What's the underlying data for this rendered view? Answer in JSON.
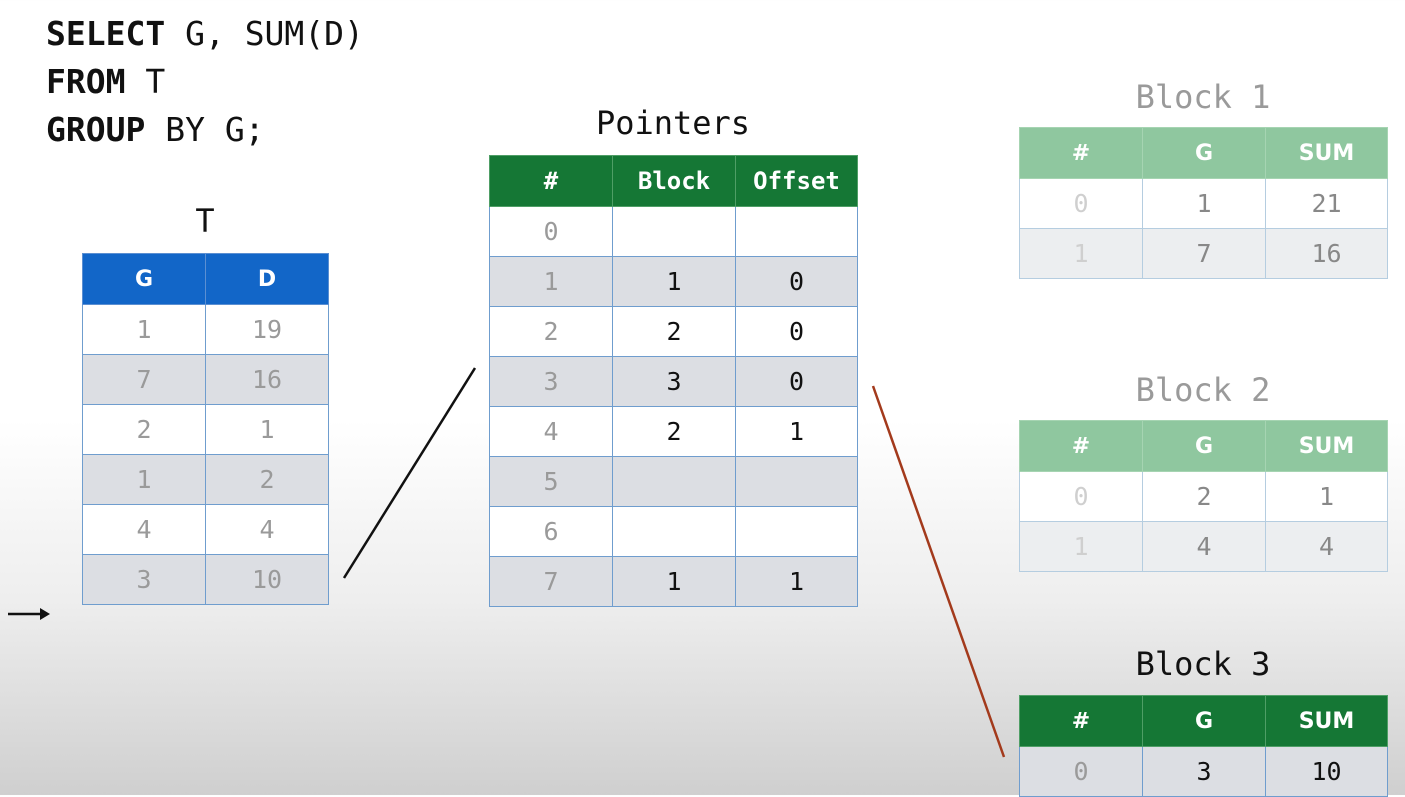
{
  "query": {
    "line1": {
      "kw": "SELECT",
      "rest": " G, SUM(D)"
    },
    "line2": {
      "kw": "FROM",
      "rest": " T"
    },
    "line3": {
      "kw": "GROUP",
      "rest": " BY G;"
    }
  },
  "t_table": {
    "caption": "T",
    "headers": [
      "G",
      "D"
    ],
    "rows": [
      [
        "1",
        "19"
      ],
      [
        "7",
        "16"
      ],
      [
        "2",
        "1"
      ],
      [
        "1",
        "2"
      ],
      [
        "4",
        "4"
      ],
      [
        "3",
        "10"
      ]
    ]
  },
  "pointers": {
    "caption": "Pointers",
    "headers": [
      "#",
      "Block",
      "Offset"
    ],
    "rows": [
      [
        "0",
        "",
        ""
      ],
      [
        "1",
        "1",
        "0"
      ],
      [
        "2",
        "2",
        "0"
      ],
      [
        "3",
        "3",
        "0"
      ],
      [
        "4",
        "2",
        "1"
      ],
      [
        "5",
        "",
        ""
      ],
      [
        "6",
        "",
        ""
      ],
      [
        "7",
        "1",
        "1"
      ]
    ]
  },
  "block1": {
    "caption": "Block 1",
    "headers": [
      "#",
      "G",
      "SUM"
    ],
    "rows": [
      [
        "0",
        "1",
        "21"
      ],
      [
        "1",
        "7",
        "16"
      ]
    ]
  },
  "block2": {
    "caption": "Block 2",
    "headers": [
      "#",
      "G",
      "SUM"
    ],
    "rows": [
      [
        "0",
        "2",
        "1"
      ],
      [
        "1",
        "4",
        "4"
      ]
    ]
  },
  "block3": {
    "caption": "Block 3",
    "headers": [
      "#",
      "G",
      "SUM"
    ],
    "rows": [
      [
        "0",
        "3",
        "10"
      ]
    ]
  },
  "colors": {
    "t_header": "#1266c8",
    "active_header": "#157735",
    "faded_header": "#8fc79f",
    "link_line_black": "#111111",
    "link_line_red": "#a33a1c"
  },
  "icons": {
    "row_cursor": "arrow-right-icon"
  }
}
